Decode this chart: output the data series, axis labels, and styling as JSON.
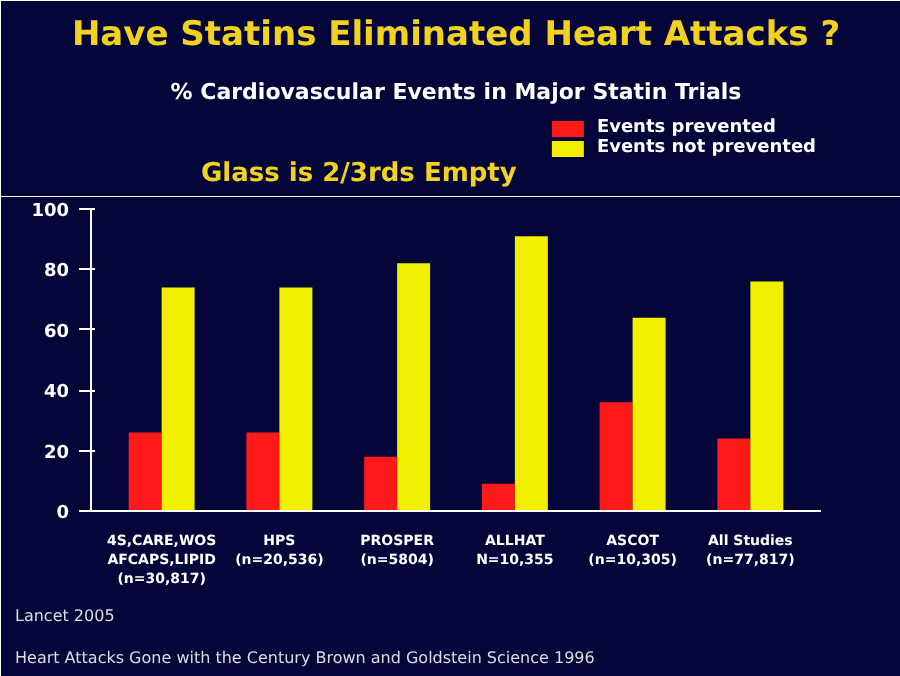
{
  "chart_data": {
    "type": "bar",
    "title": "Have Statins Eliminated Heart Attacks ?",
    "subtitle": "% Cardiovascular Events in Major Statin Trials",
    "categories": [
      "4S,CARE,WOS\nAFCAPS,LIPID\n(n=30,817)",
      "HPS\n(n=20,536)",
      "PROSPER\n(n=5804)",
      "ALLHAT\nN=10,355",
      "ASCOT\n(n=10,305)",
      "All Studies\n(n=77,817)"
    ],
    "series": [
      {
        "name": "Events prevented",
        "color": "#ff1a1a",
        "values": [
          26,
          26,
          18,
          9,
          36,
          24
        ]
      },
      {
        "name": "Events not prevented",
        "color": "#f2f000",
        "values": [
          74,
          74,
          82,
          91,
          64,
          76
        ]
      }
    ],
    "ylim": [
      0,
      100
    ],
    "yticks": [
      0,
      20,
      40,
      60,
      80,
      100
    ],
    "grid": false,
    "legend": "top right",
    "annotations": [
      "Glass is 2/3rds Empty",
      "Lancet 2005",
      "Heart Attacks Gone with the Century Brown and Goldstein  Science 1996"
    ]
  }
}
